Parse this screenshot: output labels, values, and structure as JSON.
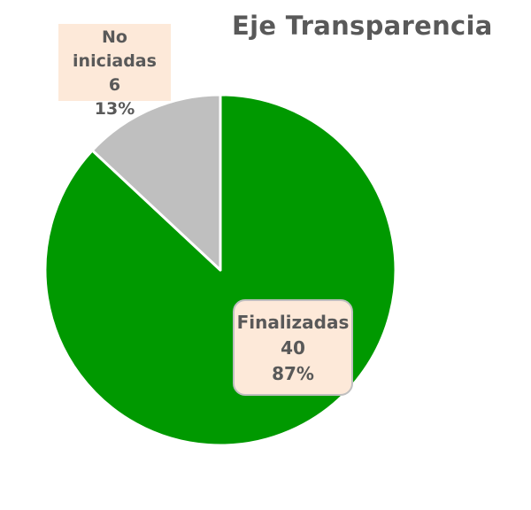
{
  "chart_data": {
    "type": "pie",
    "title": "Eje Transparencia",
    "categories": [
      "Finalizadas",
      "No iniciadas"
    ],
    "values": [
      40,
      6
    ],
    "percentages": [
      "87%",
      "13%"
    ],
    "colors": [
      "#009900",
      "#bfbfbf"
    ]
  }
}
